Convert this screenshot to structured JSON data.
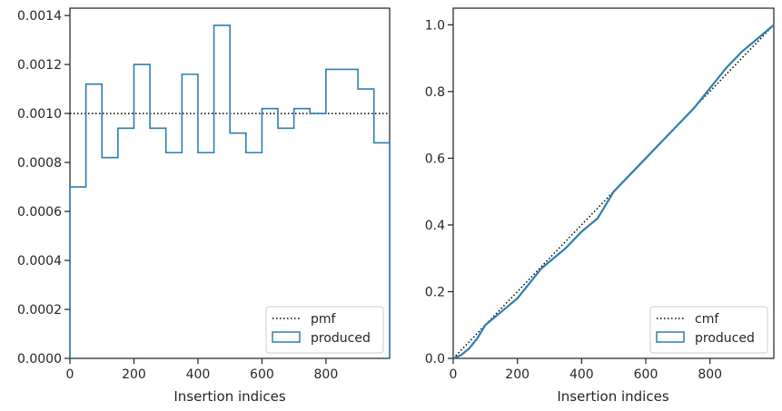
{
  "chart_data": [
    {
      "type": "step",
      "xlabel": "Insertion indices",
      "ylabel": "",
      "xlim": [
        0,
        999
      ],
      "ylim": [
        0,
        0.00143
      ],
      "xticks": [
        0,
        200,
        400,
        600,
        800
      ],
      "yticks": [
        0.0,
        0.0002,
        0.0004,
        0.0006,
        0.0008,
        0.001,
        0.0012,
        0.0014
      ],
      "xtick_labels": [
        "0",
        "200",
        "400",
        "600",
        "800"
      ],
      "ytick_labels": [
        "0.0000",
        "0.0002",
        "0.0004",
        "0.0006",
        "0.0008",
        "0.0010",
        "0.0012",
        "0.0014"
      ],
      "grid": false,
      "legend_position": "lower-right",
      "series": [
        {
          "name": "pmf",
          "style": "dotted",
          "color": "#000000",
          "x": [
            0,
            999
          ],
          "values": [
            0.001,
            0.001
          ]
        },
        {
          "name": "produced",
          "style": "step-histogram",
          "color": "#2e7eb0",
          "bin_edges": [
            0,
            50,
            100,
            150,
            200,
            250,
            300,
            350,
            400,
            450,
            500,
            550,
            600,
            650,
            700,
            750,
            800,
            850,
            900,
            950,
            999
          ],
          "values": [
            0.0007,
            0.00112,
            0.00082,
            0.00094,
            0.0012,
            0.00094,
            0.00084,
            0.00116,
            0.00084,
            0.00136,
            0.00092,
            0.00084,
            0.00102,
            0.00094,
            0.00102,
            0.001,
            0.00118,
            0.00118,
            0.0011,
            0.00088
          ]
        }
      ]
    },
    {
      "type": "line",
      "xlabel": "Insertion indices",
      "ylabel": "",
      "xlim": [
        0,
        999
      ],
      "ylim": [
        0,
        1.05
      ],
      "xticks": [
        0,
        200,
        400,
        600,
        800
      ],
      "yticks": [
        0.0,
        0.2,
        0.4,
        0.6,
        0.8,
        1.0
      ],
      "xtick_labels": [
        "0",
        "200",
        "400",
        "600",
        "800"
      ],
      "ytick_labels": [
        "0.0",
        "0.2",
        "0.4",
        "0.6",
        "0.8",
        "1.0"
      ],
      "grid": false,
      "legend_position": "lower-right",
      "series": [
        {
          "name": "cmf",
          "style": "dotted",
          "color": "#000000",
          "x": [
            0,
            999
          ],
          "values": [
            0.0,
            1.0
          ]
        },
        {
          "name": "produced",
          "style": "solid",
          "color": "#2e7eb0",
          "x": [
            0,
            25,
            50,
            75,
            100,
            150,
            200,
            250,
            275,
            300,
            350,
            400,
            450,
            500,
            550,
            600,
            650,
            700,
            750,
            800,
            850,
            900,
            950,
            999
          ],
          "values": [
            0.0,
            0.01,
            0.03,
            0.06,
            0.1,
            0.14,
            0.18,
            0.24,
            0.27,
            0.29,
            0.33,
            0.38,
            0.42,
            0.5,
            0.55,
            0.6,
            0.65,
            0.7,
            0.75,
            0.81,
            0.87,
            0.92,
            0.96,
            1.0
          ]
        }
      ]
    }
  ]
}
